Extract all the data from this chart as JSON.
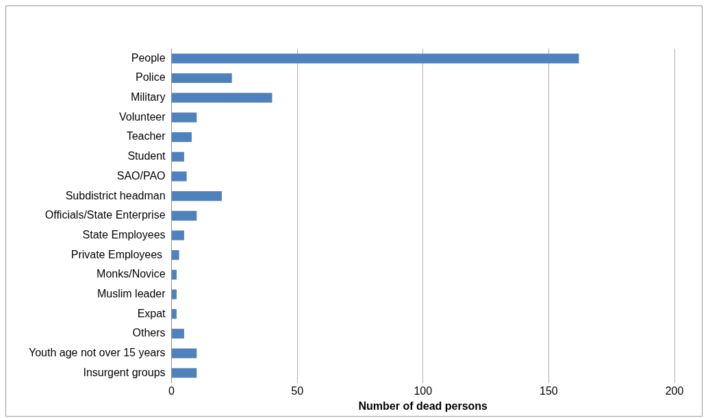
{
  "chart_data": {
    "type": "bar",
    "orientation": "horizontal",
    "xlabel": "Number of dead persons",
    "categories": [
      "People",
      "Police",
      "Military",
      "Volunteer",
      "Teacher",
      "Student",
      "SAO/PAO",
      "Subdistrict headman",
      "Officials/State Enterprise",
      "State Employees",
      "Private Employees ",
      "Monks/Novice",
      "Muslim leader",
      "Expat",
      "Others",
      "Youth age not over 15 years",
      "Insurgent groups"
    ],
    "values": [
      162,
      24,
      40,
      10,
      8,
      5,
      6,
      20,
      10,
      5,
      3,
      2,
      2,
      2,
      5,
      10,
      10
    ],
    "color": "#4f81bd",
    "xlim": [
      0,
      200
    ],
    "xticks": [
      0,
      50,
      100,
      150,
      200
    ],
    "grid": "x",
    "legend": false
  }
}
